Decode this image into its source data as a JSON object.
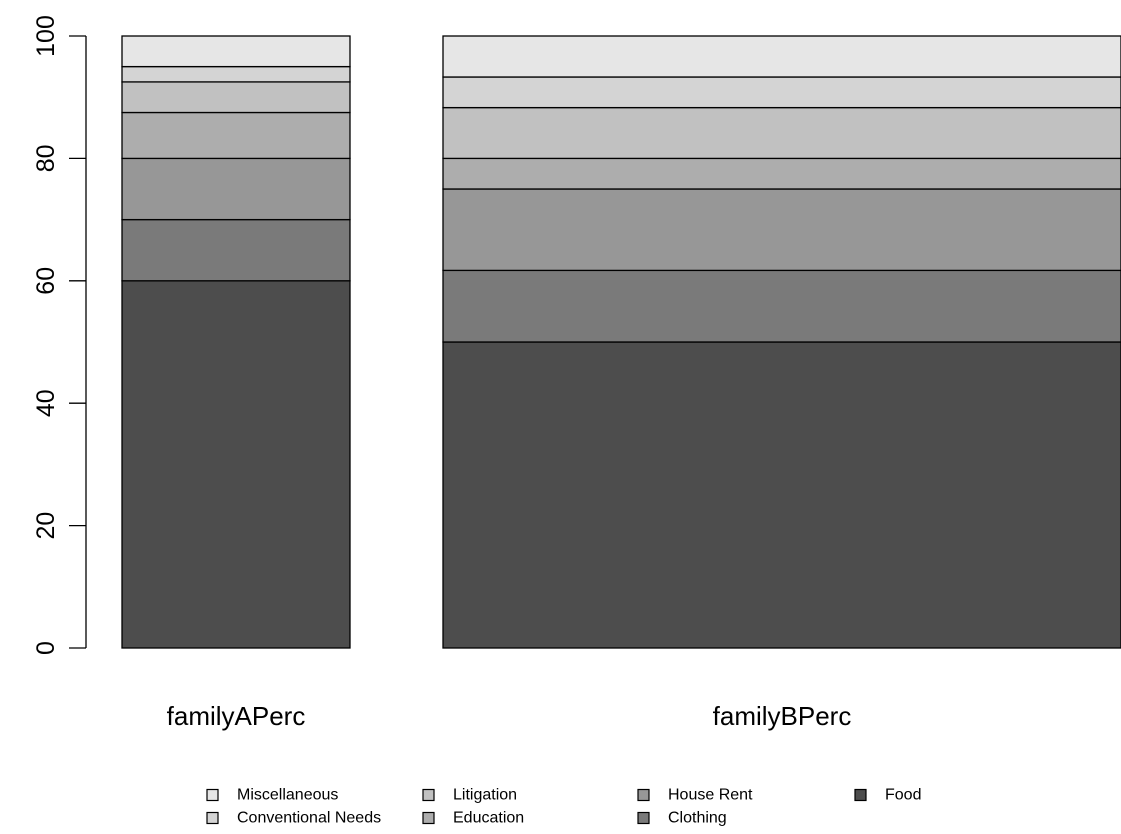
{
  "chart_data": {
    "type": "bar",
    "stacked": true,
    "categories": [
      "familyAPerc",
      "familyBPerc"
    ],
    "series": [
      {
        "name": "Food",
        "values": [
          60,
          50
        ],
        "color": "#4d4d4d"
      },
      {
        "name": "Clothing",
        "values": [
          10,
          11.7
        ],
        "color": "#7a7a7a"
      },
      {
        "name": "House Rent",
        "values": [
          10,
          13.3
        ],
        "color": "#979797"
      },
      {
        "name": "Education",
        "values": [
          7.5,
          5
        ],
        "color": "#adadad"
      },
      {
        "name": "Litigation",
        "values": [
          5,
          8.3
        ],
        "color": "#c1c1c1"
      },
      {
        "name": "Conventional Needs",
        "values": [
          2.5,
          5
        ],
        "color": "#d4d4d4"
      },
      {
        "name": "Miscellaneous",
        "values": [
          5,
          6.7
        ],
        "color": "#e6e6e6"
      }
    ],
    "ylim": [
      0,
      100
    ],
    "yticks": [
      0,
      20,
      40,
      60,
      80,
      100
    ],
    "xlabel": "",
    "ylabel": "",
    "title": "",
    "grid": false,
    "legend": {
      "position": "bottom",
      "order": [
        "Miscellaneous",
        "Conventional Needs",
        "Litigation",
        "Education",
        "House Rent",
        "Clothing",
        "Food"
      ]
    }
  }
}
